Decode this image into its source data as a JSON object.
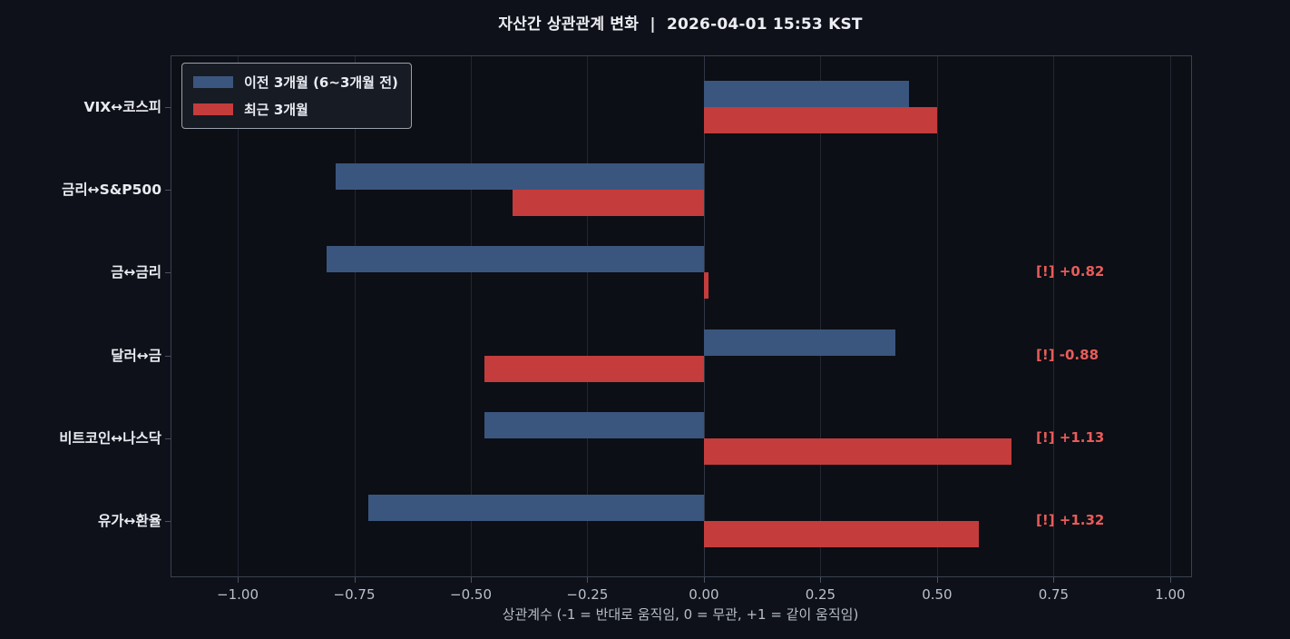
{
  "title": "자산간 상관관계 변화  |  2026-04-01 15:53 KST",
  "legend": {
    "items": [
      {
        "label": "이전 3개월 (6~3개월 전)",
        "color": "#3a567f"
      },
      {
        "label": "최근 3개월",
        "color": "#c43c3c"
      }
    ]
  },
  "chart_data": {
    "type": "bar",
    "orientation": "horizontal",
    "title": "자산간 상관관계 변화 | 2026-04-01 15:53 KST",
    "xlabel": "상관계수 (-1 = 반대로 움직임, 0 = 무관, +1 = 같이 움직임)",
    "ylabel": "",
    "categories": [
      "VIX↔코스피",
      "금리↔S&P500",
      "금↔금리",
      "달러↔금",
      "비트코인↔나스닥",
      "유가↔환율"
    ],
    "series": [
      {
        "name": "이전 3개월 (6~3개월 전)",
        "color": "#3a567f",
        "values": [
          0.44,
          -0.79,
          -0.81,
          0.41,
          -0.47,
          -0.72
        ]
      },
      {
        "name": "최근 3개월",
        "color": "#c43c3c",
        "values": [
          0.5,
          -0.41,
          0.01,
          -0.47,
          0.66,
          0.59
        ]
      }
    ],
    "annotations": [
      null,
      null,
      "[!] +0.82",
      "[!] -0.88",
      "[!] +1.13",
      "[!] +1.32"
    ],
    "annotation_color": "#e85c5a",
    "x_tick_values": [
      -1.0,
      -0.75,
      -0.5,
      -0.25,
      0.0,
      0.25,
      0.5,
      0.75,
      1.0
    ],
    "x_tick_labels": [
      "−1.00",
      "−0.75",
      "−0.50",
      "−0.25",
      "0.00",
      "0.25",
      "0.50",
      "0.75",
      "1.00"
    ],
    "xlim": [
      -1.142,
      1.045
    ],
    "grid": true,
    "legend_position": "upper-left",
    "background": "#0c0f15"
  }
}
